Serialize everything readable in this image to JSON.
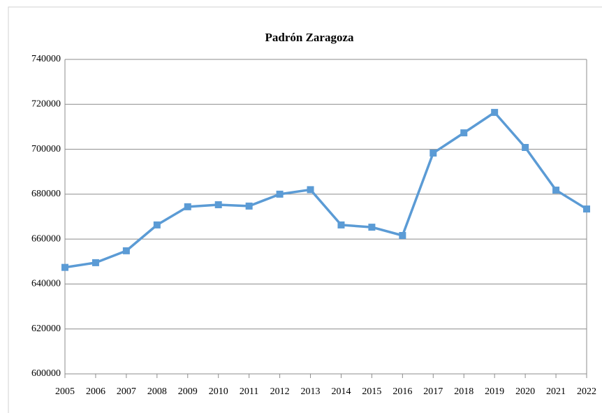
{
  "chart_data": {
    "type": "line",
    "title": "Padrón Zaragoza",
    "categories": [
      "2005",
      "2006",
      "2007",
      "2008",
      "2009",
      "2010",
      "2011",
      "2012",
      "2013",
      "2014",
      "2015",
      "2016",
      "2017",
      "2018",
      "2019",
      "2020",
      "2021",
      "2022"
    ],
    "series": [
      {
        "name": "Padrón",
        "color": "#5b9bd5",
        "values": [
          647400,
          649500,
          654800,
          666300,
          674400,
          675300,
          674700,
          680000,
          682000,
          666300,
          665300,
          661600,
          698300,
          707300,
          716400,
          700800,
          681800,
          673400
        ]
      }
    ],
    "ylim": [
      600000,
      740000
    ],
    "yticks": [
      600000,
      620000,
      640000,
      660000,
      680000,
      700000,
      720000,
      740000
    ],
    "grid": true,
    "legend": false
  }
}
